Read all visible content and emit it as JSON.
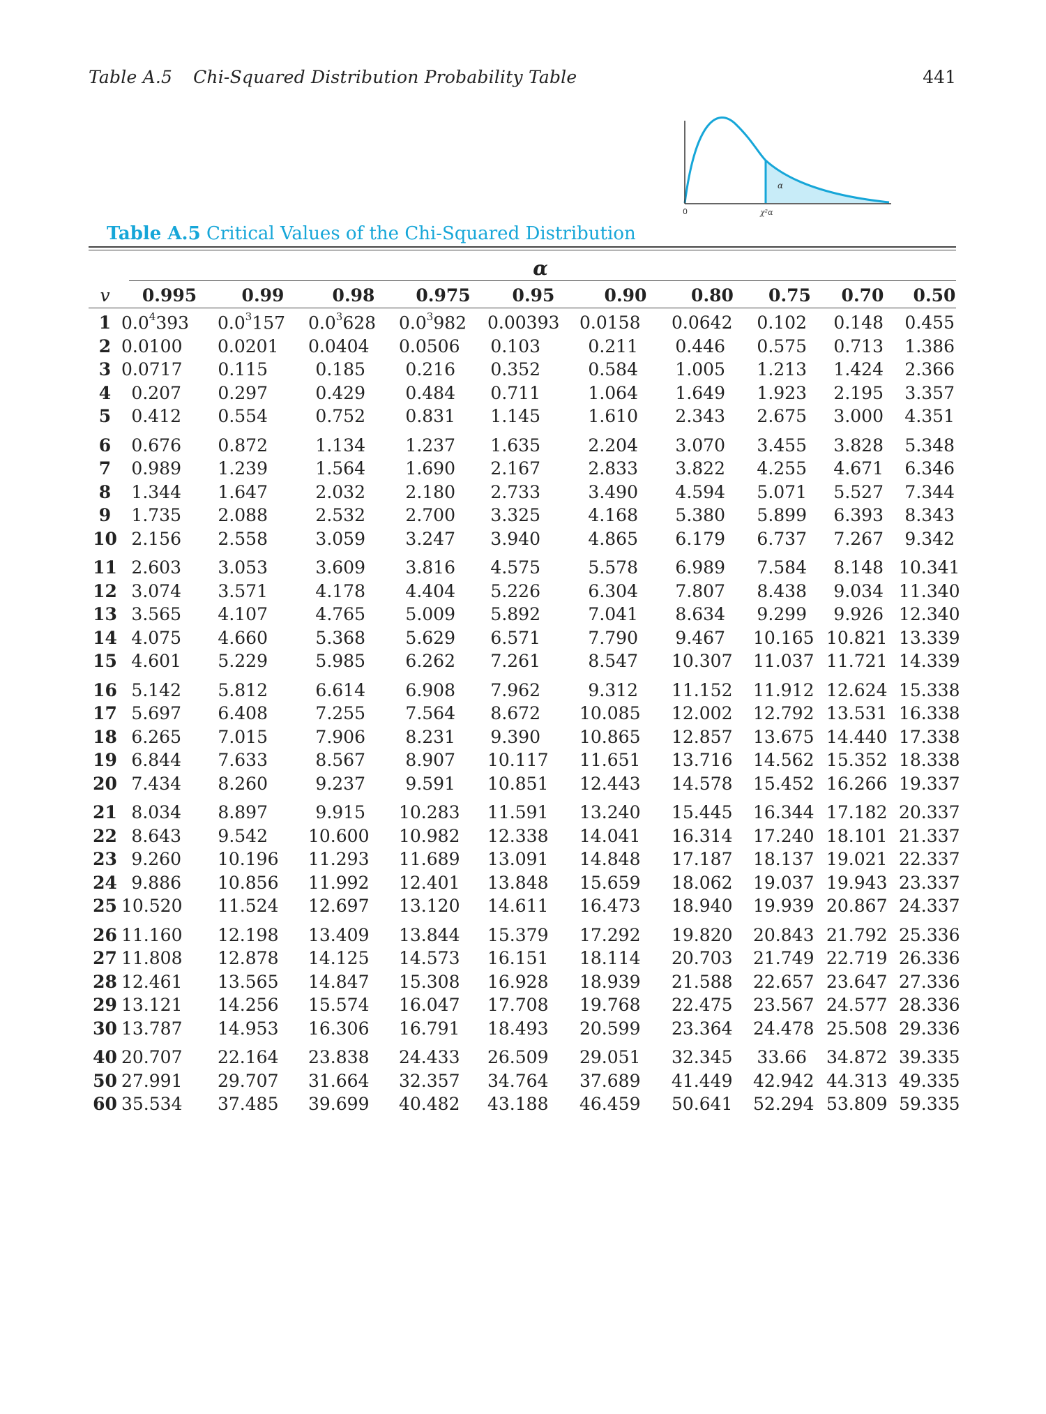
{
  "header": {
    "table_ref": "Table A.5",
    "title": "Chi-Squared Distribution Probability Table",
    "page_number": "441"
  },
  "figure": {
    "origin_label": "0",
    "alpha_label": "α",
    "critical_label": "χ²α",
    "curve_color": "#16a6d8",
    "fill_color": "#c8ecf8"
  },
  "caption": {
    "label": "Table A.5",
    "text": "Critical Values of the Chi-Squared Distribution"
  },
  "table": {
    "alpha_symbol": "α",
    "nu_header": "v",
    "columns": [
      "0.995",
      "0.99",
      "0.98",
      "0.975",
      "0.95",
      "0.90",
      "0.80",
      "0.75",
      "0.70",
      "0.50"
    ],
    "rows": [
      {
        "v": "1",
        "vals": [
          "0.0^4393",
          "0.0^3157",
          "0.0^3628",
          "0.0^3982",
          "0.00393",
          "0.0158",
          "0.0642",
          "0.102",
          "0.148",
          "0.455"
        ]
      },
      {
        "v": "2",
        "vals": [
          "0.0100",
          "0.0201",
          "0.0404",
          "0.0506",
          "0.103",
          "0.211",
          "0.446",
          "0.575",
          "0.713",
          "1.386"
        ]
      },
      {
        "v": "3",
        "vals": [
          "0.0717",
          "0.115",
          "0.185",
          "0.216",
          "0.352",
          "0.584",
          "1.005",
          "1.213",
          "1.424",
          "2.366"
        ]
      },
      {
        "v": "4",
        "vals": [
          "0.207",
          "0.297",
          "0.429",
          "0.484",
          "0.711",
          "1.064",
          "1.649",
          "1.923",
          "2.195",
          "3.357"
        ]
      },
      {
        "v": "5",
        "vals": [
          "0.412",
          "0.554",
          "0.752",
          "0.831",
          "1.145",
          "1.610",
          "2.343",
          "2.675",
          "3.000",
          "4.351"
        ]
      },
      {
        "v": "6",
        "vals": [
          "0.676",
          "0.872",
          "1.134",
          "1.237",
          "1.635",
          "2.204",
          "3.070",
          "3.455",
          "3.828",
          "5.348"
        ]
      },
      {
        "v": "7",
        "vals": [
          "0.989",
          "1.239",
          "1.564",
          "1.690",
          "2.167",
          "2.833",
          "3.822",
          "4.255",
          "4.671",
          "6.346"
        ]
      },
      {
        "v": "8",
        "vals": [
          "1.344",
          "1.647",
          "2.032",
          "2.180",
          "2.733",
          "3.490",
          "4.594",
          "5.071",
          "5.527",
          "7.344"
        ]
      },
      {
        "v": "9",
        "vals": [
          "1.735",
          "2.088",
          "2.532",
          "2.700",
          "3.325",
          "4.168",
          "5.380",
          "5.899",
          "6.393",
          "8.343"
        ]
      },
      {
        "v": "10",
        "vals": [
          "2.156",
          "2.558",
          "3.059",
          "3.247",
          "3.940",
          "4.865",
          "6.179",
          "6.737",
          "7.267",
          "9.342"
        ]
      },
      {
        "v": "11",
        "vals": [
          "2.603",
          "3.053",
          "3.609",
          "3.816",
          "4.575",
          "5.578",
          "6.989",
          "7.584",
          "8.148",
          "10.341"
        ]
      },
      {
        "v": "12",
        "vals": [
          "3.074",
          "3.571",
          "4.178",
          "4.404",
          "5.226",
          "6.304",
          "7.807",
          "8.438",
          "9.034",
          "11.340"
        ]
      },
      {
        "v": "13",
        "vals": [
          "3.565",
          "4.107",
          "4.765",
          "5.009",
          "5.892",
          "7.041",
          "8.634",
          "9.299",
          "9.926",
          "12.340"
        ]
      },
      {
        "v": "14",
        "vals": [
          "4.075",
          "4.660",
          "5.368",
          "5.629",
          "6.571",
          "7.790",
          "9.467",
          "10.165",
          "10.821",
          "13.339"
        ]
      },
      {
        "v": "15",
        "vals": [
          "4.601",
          "5.229",
          "5.985",
          "6.262",
          "7.261",
          "8.547",
          "10.307",
          "11.037",
          "11.721",
          "14.339"
        ]
      },
      {
        "v": "16",
        "vals": [
          "5.142",
          "5.812",
          "6.614",
          "6.908",
          "7.962",
          "9.312",
          "11.152",
          "11.912",
          "12.624",
          "15.338"
        ]
      },
      {
        "v": "17",
        "vals": [
          "5.697",
          "6.408",
          "7.255",
          "7.564",
          "8.672",
          "10.085",
          "12.002",
          "12.792",
          "13.531",
          "16.338"
        ]
      },
      {
        "v": "18",
        "vals": [
          "6.265",
          "7.015",
          "7.906",
          "8.231",
          "9.390",
          "10.865",
          "12.857",
          "13.675",
          "14.440",
          "17.338"
        ]
      },
      {
        "v": "19",
        "vals": [
          "6.844",
          "7.633",
          "8.567",
          "8.907",
          "10.117",
          "11.651",
          "13.716",
          "14.562",
          "15.352",
          "18.338"
        ]
      },
      {
        "v": "20",
        "vals": [
          "7.434",
          "8.260",
          "9.237",
          "9.591",
          "10.851",
          "12.443",
          "14.578",
          "15.452",
          "16.266",
          "19.337"
        ]
      },
      {
        "v": "21",
        "vals": [
          "8.034",
          "8.897",
          "9.915",
          "10.283",
          "11.591",
          "13.240",
          "15.445",
          "16.344",
          "17.182",
          "20.337"
        ]
      },
      {
        "v": "22",
        "vals": [
          "8.643",
          "9.542",
          "10.600",
          "10.982",
          "12.338",
          "14.041",
          "16.314",
          "17.240",
          "18.101",
          "21.337"
        ]
      },
      {
        "v": "23",
        "vals": [
          "9.260",
          "10.196",
          "11.293",
          "11.689",
          "13.091",
          "14.848",
          "17.187",
          "18.137",
          "19.021",
          "22.337"
        ]
      },
      {
        "v": "24",
        "vals": [
          "9.886",
          "10.856",
          "11.992",
          "12.401",
          "13.848",
          "15.659",
          "18.062",
          "19.037",
          "19.943",
          "23.337"
        ]
      },
      {
        "v": "25",
        "vals": [
          "10.520",
          "11.524",
          "12.697",
          "13.120",
          "14.611",
          "16.473",
          "18.940",
          "19.939",
          "20.867",
          "24.337"
        ]
      },
      {
        "v": "26",
        "vals": [
          "11.160",
          "12.198",
          "13.409",
          "13.844",
          "15.379",
          "17.292",
          "19.820",
          "20.843",
          "21.792",
          "25.336"
        ]
      },
      {
        "v": "27",
        "vals": [
          "11.808",
          "12.878",
          "14.125",
          "14.573",
          "16.151",
          "18.114",
          "20.703",
          "21.749",
          "22.719",
          "26.336"
        ]
      },
      {
        "v": "28",
        "vals": [
          "12.461",
          "13.565",
          "14.847",
          "15.308",
          "16.928",
          "18.939",
          "21.588",
          "22.657",
          "23.647",
          "27.336"
        ]
      },
      {
        "v": "29",
        "vals": [
          "13.121",
          "14.256",
          "15.574",
          "16.047",
          "17.708",
          "19.768",
          "22.475",
          "23.567",
          "24.577",
          "28.336"
        ]
      },
      {
        "v": "30",
        "vals": [
          "13.787",
          "14.953",
          "16.306",
          "16.791",
          "18.493",
          "20.599",
          "23.364",
          "24.478",
          "25.508",
          "29.336"
        ]
      },
      {
        "v": "40",
        "vals": [
          "20.707",
          "22.164",
          "23.838",
          "24.433",
          "26.509",
          "29.051",
          "32.345",
          "33.66",
          "34.872",
          "39.335"
        ]
      },
      {
        "v": "50",
        "vals": [
          "27.991",
          "29.707",
          "31.664",
          "32.357",
          "34.764",
          "37.689",
          "41.449",
          "42.942",
          "44.313",
          "49.335"
        ]
      },
      {
        "v": "60",
        "vals": [
          "35.534",
          "37.485",
          "39.699",
          "40.482",
          "43.188",
          "46.459",
          "50.641",
          "52.294",
          "53.809",
          "59.335"
        ]
      }
    ]
  }
}
